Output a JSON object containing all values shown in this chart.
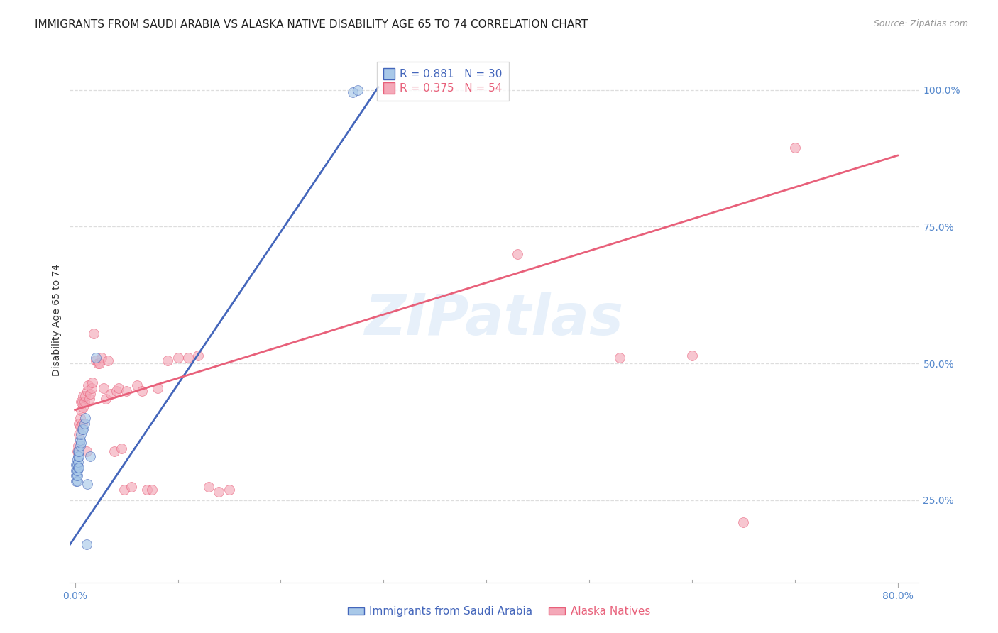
{
  "title": "IMMIGRANTS FROM SAUDI ARABIA VS ALASKA NATIVE DISABILITY AGE 65 TO 74 CORRELATION CHART",
  "source": "Source: ZipAtlas.com",
  "ylabel": "Disability Age 65 to 74",
  "xlim": [
    -0.005,
    0.82
  ],
  "ylim": [
    0.1,
    1.06
  ],
  "xtick_positions": [
    0.0,
    0.8
  ],
  "xtick_labels": [
    "0.0%",
    "80.0%"
  ],
  "xtick_minor": [
    0.1,
    0.2,
    0.3,
    0.4,
    0.5,
    0.6,
    0.7
  ],
  "yticks_right": [
    0.25,
    0.5,
    0.75,
    1.0
  ],
  "ytick_labels_right": [
    "25.0%",
    "50.0%",
    "75.0%",
    "100.0%"
  ],
  "blue_R": "0.881",
  "blue_N": "30",
  "pink_R": "0.375",
  "pink_N": "54",
  "blue_color": "#A8C8E8",
  "pink_color": "#F4A8B8",
  "blue_line_color": "#4466BB",
  "pink_line_color": "#E8607A",
  "blue_scatter_x": [
    0.001,
    0.001,
    0.001,
    0.001,
    0.002,
    0.002,
    0.002,
    0.002,
    0.002,
    0.003,
    0.003,
    0.003,
    0.003,
    0.004,
    0.004,
    0.004,
    0.005,
    0.005,
    0.006,
    0.006,
    0.007,
    0.008,
    0.009,
    0.01,
    0.011,
    0.012,
    0.015,
    0.02,
    0.27,
    0.275
  ],
  "blue_scatter_y": [
    0.285,
    0.295,
    0.305,
    0.315,
    0.285,
    0.295,
    0.305,
    0.315,
    0.325,
    0.31,
    0.32,
    0.33,
    0.34,
    0.31,
    0.33,
    0.34,
    0.35,
    0.36,
    0.355,
    0.37,
    0.38,
    0.38,
    0.39,
    0.4,
    0.17,
    0.28,
    0.33,
    0.51,
    0.995,
    1.0
  ],
  "pink_scatter_x": [
    0.002,
    0.003,
    0.004,
    0.004,
    0.005,
    0.005,
    0.006,
    0.006,
    0.007,
    0.007,
    0.008,
    0.008,
    0.009,
    0.01,
    0.011,
    0.012,
    0.013,
    0.014,
    0.015,
    0.016,
    0.017,
    0.018,
    0.02,
    0.022,
    0.024,
    0.026,
    0.028,
    0.03,
    0.032,
    0.035,
    0.038,
    0.04,
    0.042,
    0.045,
    0.048,
    0.05,
    0.055,
    0.06,
    0.065,
    0.07,
    0.075,
    0.08,
    0.09,
    0.1,
    0.11,
    0.12,
    0.13,
    0.14,
    0.15,
    0.43,
    0.53,
    0.6,
    0.65,
    0.7
  ],
  "pink_scatter_y": [
    0.34,
    0.35,
    0.37,
    0.39,
    0.385,
    0.4,
    0.415,
    0.43,
    0.39,
    0.43,
    0.42,
    0.44,
    0.43,
    0.44,
    0.34,
    0.45,
    0.46,
    0.435,
    0.445,
    0.455,
    0.465,
    0.555,
    0.505,
    0.5,
    0.5,
    0.51,
    0.455,
    0.435,
    0.505,
    0.445,
    0.34,
    0.45,
    0.455,
    0.345,
    0.27,
    0.45,
    0.275,
    0.46,
    0.45,
    0.27,
    0.27,
    0.455,
    0.505,
    0.51,
    0.51,
    0.515,
    0.275,
    0.265,
    0.27,
    0.7,
    0.51,
    0.515,
    0.21,
    0.895
  ],
  "blue_line_x0": -0.01,
  "blue_line_x1": 0.295,
  "blue_line_y0": 0.155,
  "blue_line_y1": 1.005,
  "pink_line_x0": 0.0,
  "pink_line_x1": 0.8,
  "pink_line_y0": 0.415,
  "pink_line_y1": 0.88,
  "watermark_text": "ZIPatlas",
  "watermark_color": "#AACCEE",
  "background_color": "#FFFFFF",
  "grid_color": "#DDDDDD",
  "title_fontsize": 11,
  "axis_label_fontsize": 10,
  "tick_fontsize": 10,
  "tick_color": "#5588CC",
  "legend_fontsize": 11,
  "source_fontsize": 9,
  "bottom_legend_label1": "Immigrants from Saudi Arabia",
  "bottom_legend_label2": "Alaska Natives"
}
